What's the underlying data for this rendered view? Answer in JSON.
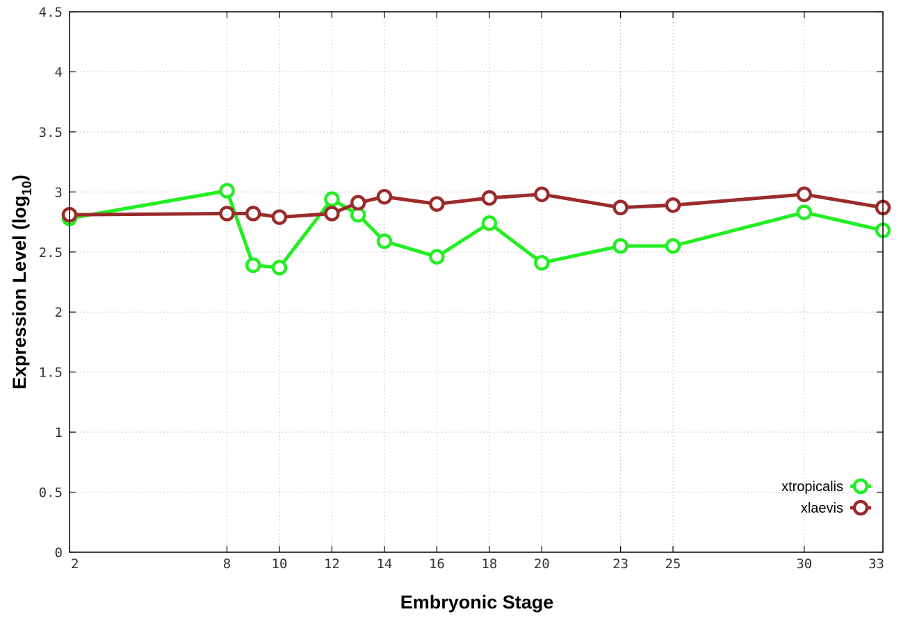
{
  "chart_data": {
    "type": "line",
    "xlabel": "Embryonic Stage",
    "ylabel_main": "Expression Level (log",
    "ylabel_sub": "10",
    "ylabel_close": ")",
    "x_ticks": [
      2,
      8,
      10,
      12,
      14,
      16,
      18,
      20,
      23,
      25,
      30,
      33
    ],
    "y_ticks": [
      "0",
      "0.5",
      "1",
      "1.5",
      "2",
      "2.5",
      "3",
      "3.5",
      "4",
      "4.5"
    ],
    "xlim": [
      2,
      33
    ],
    "ylim": [
      0,
      4.5
    ],
    "grid": true,
    "legend_position": "bottom-right",
    "series": [
      {
        "name": "xtropicalis",
        "color": "#22ee22",
        "x": [
          2,
          8,
          9,
          10,
          12,
          13,
          14,
          16,
          18,
          20,
          23,
          25,
          30,
          33
        ],
        "y": [
          2.78,
          3.01,
          2.39,
          2.37,
          2.94,
          2.81,
          2.59,
          2.46,
          2.74,
          2.41,
          2.55,
          2.55,
          2.83,
          2.68
        ]
      },
      {
        "name": "xlaevis",
        "color": "#9b2a2a",
        "x": [
          2,
          8,
          9,
          10,
          12,
          13,
          14,
          16,
          18,
          20,
          23,
          25,
          30,
          33
        ],
        "y": [
          2.81,
          2.82,
          2.82,
          2.79,
          2.82,
          2.91,
          2.96,
          2.9,
          2.95,
          2.98,
          2.87,
          2.89,
          2.98,
          2.87
        ]
      }
    ]
  }
}
